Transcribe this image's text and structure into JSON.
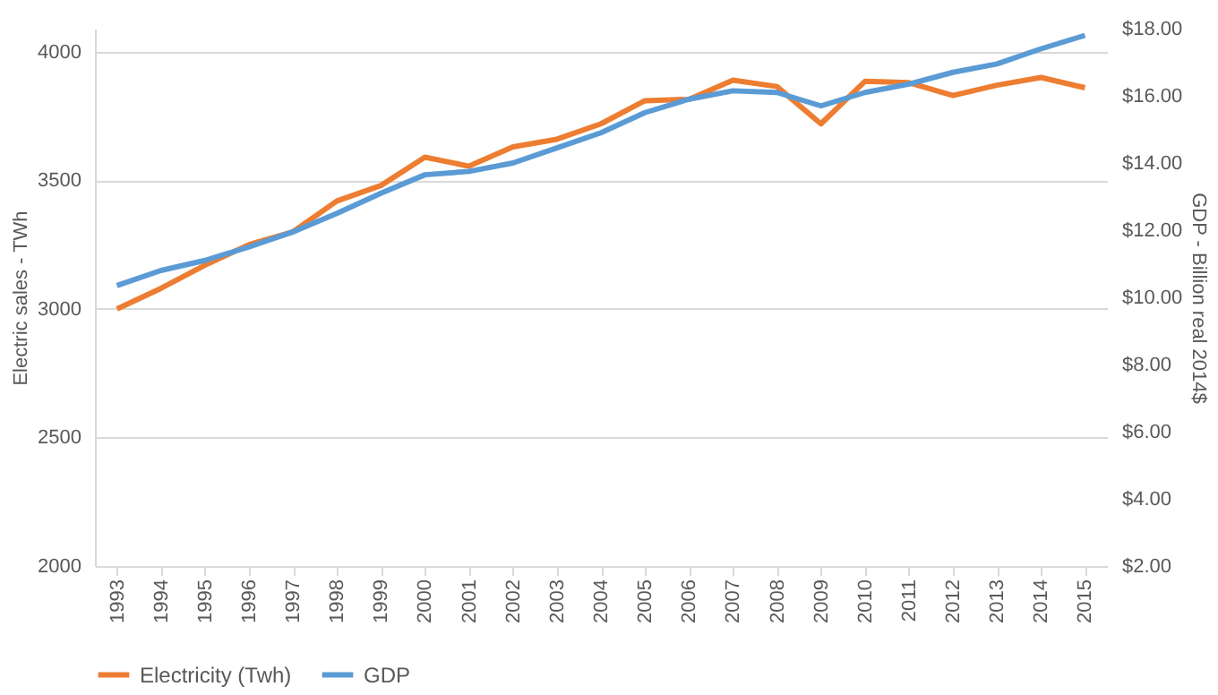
{
  "chart_data": {
    "type": "line",
    "categories": [
      "1993",
      "1994",
      "1995",
      "1996",
      "1997",
      "1998",
      "1999",
      "2000",
      "2001",
      "2002",
      "2003",
      "2004",
      "2005",
      "2006",
      "2007",
      "2008",
      "2009",
      "2010",
      "2011",
      "2012",
      "2013",
      "2014",
      "2015"
    ],
    "series": [
      {
        "name": "Electricity (Twh)",
        "color": "#ed7d31",
        "values": [
          3000,
          3080,
          3170,
          3250,
          3300,
          3420,
          3480,
          3590,
          3555,
          3630,
          3660,
          3720,
          3810,
          3815,
          3890,
          3865,
          3720,
          3885,
          3880,
          3830,
          3870,
          3900,
          3860
        ]
      },
      {
        "name": "GDP",
        "color": "#5b9bd5",
        "axis": "y2",
        "values": [
          10.35,
          10.8,
          11.1,
          11.5,
          11.95,
          12.5,
          13.1,
          13.65,
          13.75,
          14.0,
          14.45,
          14.9,
          15.5,
          15.9,
          16.15,
          16.1,
          15.7,
          16.1,
          16.35,
          16.7,
          16.95,
          17.4,
          17.8
        ]
      }
    ],
    "ylabel": "Electric sales - TWh",
    "y2label": "GDP - Billion real 2014$",
    "ylim": [
      2000,
      4090
    ],
    "yticks": [
      2000,
      2500,
      3000,
      3500,
      4000
    ],
    "y2lim": [
      2,
      18
    ],
    "y2ticks": [
      {
        "value": 2,
        "label": "$2.00"
      },
      {
        "value": 4,
        "label": "$4.00"
      },
      {
        "value": 6,
        "label": "$6.00"
      },
      {
        "value": 8,
        "label": "$8.00"
      },
      {
        "value": 10,
        "label": "$10.00"
      },
      {
        "value": 12,
        "label": "$12.00"
      },
      {
        "value": 14,
        "label": "$14.00"
      },
      {
        "value": 16,
        "label": "$16.00"
      },
      {
        "value": 18,
        "label": "$18.00"
      }
    ],
    "grid": "y",
    "legend": "bottom",
    "marker": "none",
    "line_style": "solid"
  }
}
